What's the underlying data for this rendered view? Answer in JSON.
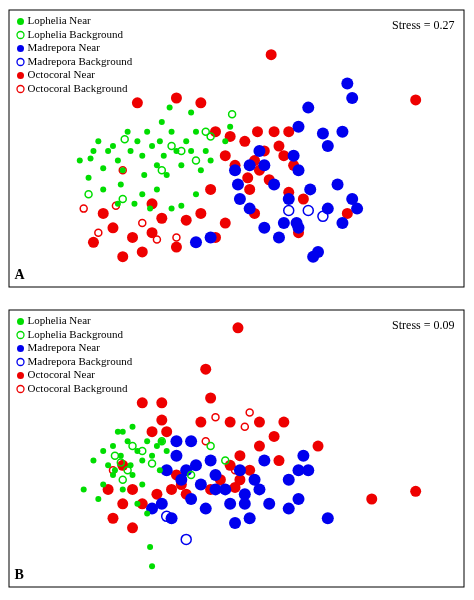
{
  "chart_data": [
    {
      "type": "scatter",
      "title": "A",
      "annotations": [
        "Stress = 0.27"
      ],
      "xlim": [
        0,
        467
      ],
      "ylim": [
        0,
        289
      ],
      "tick_labels": false,
      "grid": false,
      "legend": "top-left",
      "series": [
        {
          "name": "Lophelia Near",
          "color": "#00dd00",
          "marker": "circle",
          "x": [
            73,
            84,
            92,
            87,
            97,
            102,
            107,
            112,
            117,
            122,
            125,
            132,
            137,
            139,
            142,
            147,
            152,
            155,
            157,
            159,
            162,
            167,
            172,
            177,
            182,
            187,
            192,
            197,
            202,
            145,
            167,
            177,
            192,
            227,
            222,
            112,
            129,
            137,
            187,
            115,
            97,
            82,
            165,
            152,
            207
          ],
          "y": [
            132,
            134,
            152,
            142,
            124,
            142,
            147,
            132,
            122,
            162,
            142,
            152,
            137,
            117,
            162,
            147,
            127,
            152,
            172,
            137,
            117,
            162,
            142,
            127,
            152,
            142,
            162,
            122,
            142,
            82,
            82,
            85,
            97,
            167,
            152,
            87,
            87,
            97,
            182,
            107,
            102,
            114,
            187,
            102,
            132
          ]
        },
        {
          "name": "Lophelia Background",
          "color": "#00dd00",
          "marker": "circle_open",
          "x": [
            119,
            82,
            167,
            177,
            202,
            207,
            229,
            157,
            192,
            117
          ],
          "y": [
            154,
            97,
            147,
            142,
            162,
            157,
            180,
            122,
            132,
            92
          ]
        },
        {
          "name": "Madrepora Near",
          "color": "#0000ee",
          "marker": "circle",
          "x": [
            347,
            307,
            322,
            297,
            342,
            327,
            292,
            257,
            247,
            262,
            297,
            309,
            287,
            352,
            357,
            342,
            327,
            297,
            277,
            262,
            247,
            237,
            235,
            232,
            207,
            192,
            317,
            312,
            295,
            352,
            272,
            282,
            337
          ],
          "y": [
            212,
            187,
            160,
            167,
            162,
            147,
            137,
            142,
            127,
            127,
            122,
            102,
            92,
            92,
            82,
            67,
            82,
            62,
            52,
            62,
            82,
            92,
            107,
            122,
            52,
            47,
            37,
            32,
            67,
            197,
            107,
            67,
            107
          ]
        },
        {
          "name": "Madrepora Background",
          "color": "#0000ee",
          "marker": "circle_open",
          "x": [
            287,
            307,
            322
          ],
          "y": [
            80,
            80,
            74
          ]
        },
        {
          "name": "Octocoral Near",
          "color": "#ee0000",
          "marker": "circle",
          "x": [
            417,
            269,
            227,
            242,
            252,
            257,
            262,
            267,
            247,
            282,
            292,
            277,
            222,
            232,
            245,
            287,
            252,
            297,
            347,
            212,
            207,
            302,
            287,
            272,
            255,
            132,
            172,
            197,
            147,
            97,
            157,
            107,
            127,
            147,
            172,
            117,
            182,
            197,
            137,
            87,
            222,
            212
          ],
          "y": [
            195,
            242,
            157,
            152,
            132,
            122,
            142,
            112,
            102,
            137,
            127,
            147,
            137,
            127,
            114,
            162,
            77,
            57,
            77,
            162,
            102,
            92,
            99,
            162,
            162,
            192,
            197,
            192,
            87,
            77,
            72,
            62,
            52,
            57,
            42,
            32,
            70,
            77,
            37,
            47,
            67,
            52
          ]
        },
        {
          "name": "Octocoral Background",
          "color": "#ee0000",
          "marker": "circle_open",
          "x": [
            110,
            117,
            77,
            152,
            172,
            92,
            137
          ],
          "y": [
            85,
            122,
            82,
            50,
            52,
            57,
            67
          ]
        }
      ]
    },
    {
      "type": "scatter",
      "title": "B",
      "annotations": [
        "Stress = 0.09"
      ],
      "xlim": [
        0,
        467
      ],
      "ylim": [
        0,
        289
      ],
      "tick_labels": false,
      "grid": false,
      "legend": "top-left",
      "series": [
        {
          "name": "Lophelia Near",
          "color": "#00dd00",
          "marker": "circle",
          "x": [
            77,
            87,
            97,
            102,
            107,
            109,
            115,
            117,
            122,
            125,
            127,
            132,
            137,
            142,
            147,
            152,
            155,
            137,
            117,
            107,
            97,
            147,
            142,
            112,
            127,
            157,
            92,
            162,
            145,
            132
          ],
          "y": [
            102,
            132,
            142,
            127,
            147,
            122,
            137,
            162,
            152,
            127,
            117,
            142,
            132,
            152,
            137,
            147,
            122,
            107,
            102,
            117,
            107,
            22,
            77,
            162,
            167,
            152,
            92,
            142,
            42,
            87
          ]
        },
        {
          "name": "Lophelia Background",
          "color": "#00dd00",
          "marker": "circle_open",
          "x": [
            109,
            115,
            122,
            127,
            137,
            147,
            117,
            157,
            207,
            222,
            187
          ],
          "y": [
            137,
            130,
            122,
            147,
            142,
            129,
            112,
            152,
            147,
            132,
            117
          ]
        },
        {
          "name": "Madrepora Near",
          "color": "#0000ee",
          "marker": "circle",
          "x": [
            172,
            162,
            182,
            197,
            187,
            202,
            212,
            207,
            227,
            242,
            237,
            252,
            262,
            287,
            297,
            307,
            327,
            267,
            247,
            232,
            157,
            167,
            147,
            177,
            192,
            222,
            257,
            287,
            297,
            302,
            242,
            212,
            187,
            172
          ],
          "y": [
            152,
            122,
            122,
            107,
            92,
            82,
            117,
            132,
            87,
            97,
            122,
            112,
            132,
            112,
            122,
            122,
            72,
            87,
            72,
            67,
            87,
            72,
            82,
            112,
            127,
            102,
            102,
            82,
            92,
            137,
            87,
            102,
            152,
            137
          ]
        },
        {
          "name": "Madrepora Background",
          "color": "#0000ee",
          "marker": "circle_open",
          "x": [
            162,
            182
          ],
          "y": [
            74,
            50
          ]
        },
        {
          "name": "Octocoral Near",
          "color": "#ee0000",
          "marker": "circle",
          "x": [
            157,
            147,
            162,
            197,
            172,
            167,
            177,
            182,
            207,
            217,
            227,
            247,
            257,
            277,
            317,
            232,
            237,
            372,
            417,
            107,
            102,
            117,
            127,
            137,
            152,
            127,
            117,
            235,
            227,
            237,
            257,
            272,
            282,
            207,
            157,
            137,
            202
          ],
          "y": [
            174,
            162,
            162,
            172,
            117,
            102,
            107,
            97,
            102,
            112,
            127,
            122,
            147,
            132,
            147,
            104,
            112,
            92,
            100,
            72,
            102,
            87,
            62,
            87,
            97,
            102,
            127,
            270,
            172,
            137,
            172,
            157,
            172,
            197,
            192,
            192,
            227
          ]
        },
        {
          "name": "Octocoral Background",
          "color": "#ee0000",
          "marker": "circle_open",
          "x": [
            202,
            212,
            232,
            247,
            242,
            107
          ],
          "y": [
            152,
            177,
            122,
            182,
            167,
            122
          ]
        }
      ]
    }
  ]
}
